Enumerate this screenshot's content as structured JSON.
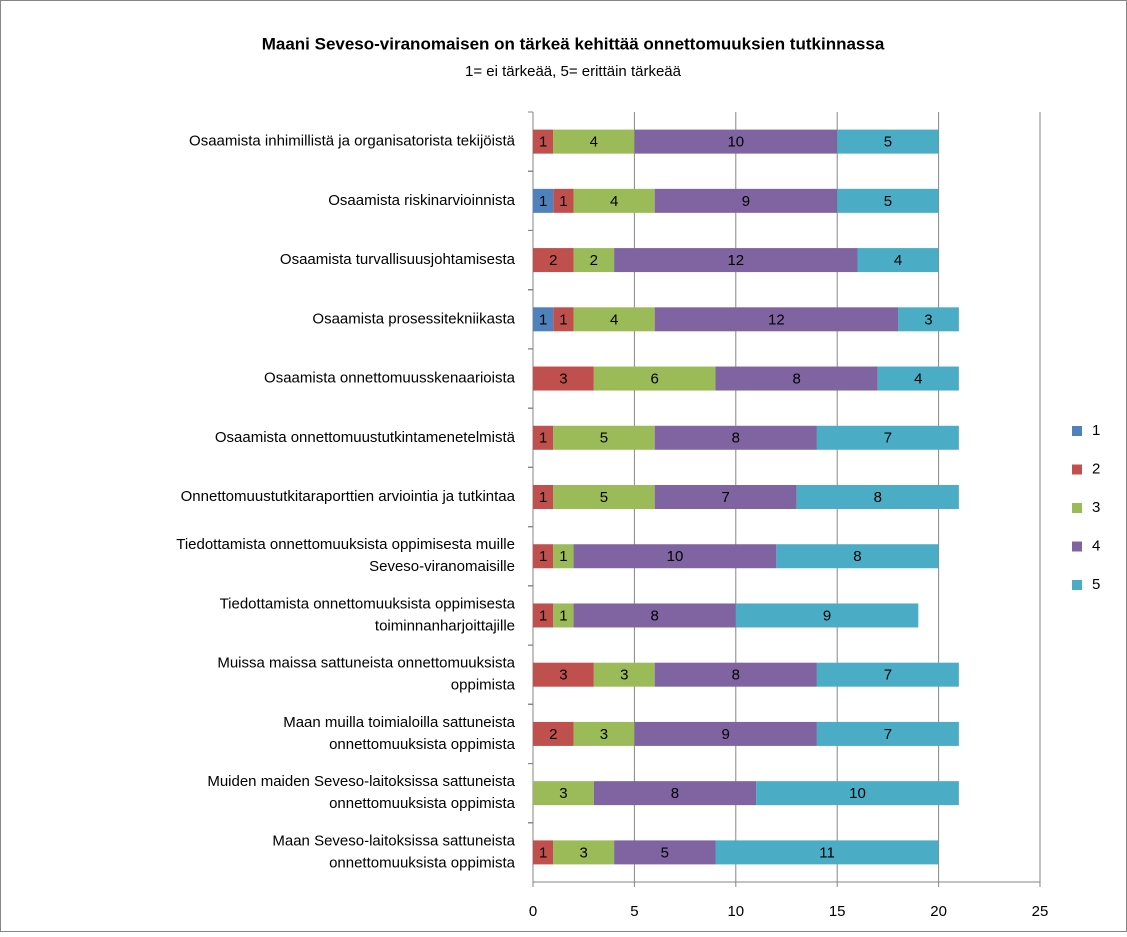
{
  "chart_data": {
    "type": "stacked_barh",
    "title": "Maani Seveso-viranomaisen on tärkeä kehittää onnettomuuksien tutkinnassa",
    "subtitle": "1= ei tärkeää, 5= erittäin tärkeää",
    "categories": [
      "Osaamista inhimillistä ja organisatorista tekijöistä",
      "Osaamista riskinarvioinnista",
      "Osaamista turvallisuusjohtamisesta",
      "Osaamista prosessitekniikasta",
      "Osaamista onnettomuusskenaarioista",
      "Osaamista onnettomuustutkintamenetelmistä",
      "Onnettomuustutkitaraporttien arviointia ja tutkintaa",
      "Tiedottamista onnettomuuksista oppimisesta muille\nSeveso-viranomaisille",
      "Tiedottamista onnettomuuksista oppimisesta\ntoiminnanharjoittajille",
      "Muissa maissa sattuneista onnettomuuksista\noppimista",
      "Maan muilla toimialoilla sattuneista\nonnettomuuksista oppimista",
      "Muiden maiden Seveso-laitoksissa sattuneista\nonnettomuuksista oppimista",
      "Maan Seveso-laitoksissa sattuneista\nonnettomuuksista oppimista"
    ],
    "series": [
      {
        "name": "1",
        "color": "#4f81bd",
        "values": [
          null,
          1,
          null,
          1,
          null,
          null,
          null,
          null,
          null,
          null,
          null,
          null,
          null
        ]
      },
      {
        "name": "2",
        "color": "#c0504d",
        "values": [
          1,
          1,
          2,
          1,
          3,
          1,
          1,
          1,
          1,
          3,
          2,
          null,
          1
        ]
      },
      {
        "name": "3",
        "color": "#9bbb59",
        "values": [
          4,
          4,
          2,
          4,
          6,
          5,
          5,
          1,
          1,
          3,
          3,
          3,
          3
        ]
      },
      {
        "name": "4",
        "color": "#8064a2",
        "values": [
          10,
          9,
          12,
          12,
          8,
          8,
          7,
          10,
          8,
          8,
          9,
          8,
          5
        ]
      },
      {
        "name": "5",
        "color": "#4bacc6",
        "values": [
          5,
          5,
          4,
          3,
          4,
          7,
          8,
          8,
          9,
          7,
          7,
          10,
          11
        ]
      }
    ],
    "xlim": [
      0,
      25
    ],
    "xticks": [
      0,
      5,
      10,
      15,
      20,
      25
    ],
    "grid": true,
    "legend": "right"
  }
}
